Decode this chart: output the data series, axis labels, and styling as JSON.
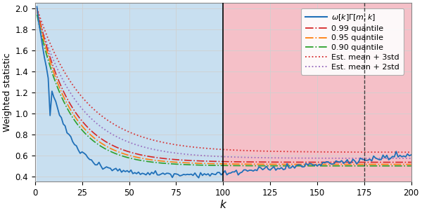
{
  "xlim": [
    1,
    200
  ],
  "ylim": [
    0.35,
    2.05
  ],
  "xlabel": "k",
  "ylabel": "Weighted statistic",
  "vline_solid": 100,
  "vline_dashed": 175,
  "bg_blue_color": "#c8dff0",
  "bg_pink_color": "#f5c0c8",
  "yticks": [
    0.4,
    0.6,
    0.8,
    1.0,
    1.2,
    1.4,
    1.6,
    1.8,
    2.0
  ],
  "xticks": [
    0,
    25,
    50,
    75,
    100,
    125,
    150,
    175,
    200
  ],
  "line_colors": {
    "main": "#2070b8",
    "q99": "#d62728",
    "q95": "#ff7f0e",
    "q90": "#2ca02c",
    "mean3std": "#d62728",
    "mean2std": "#9467bd"
  }
}
